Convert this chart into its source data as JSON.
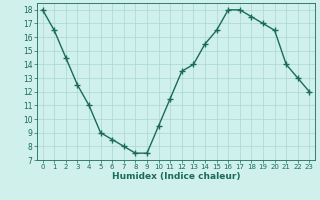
{
  "x": [
    0,
    1,
    2,
    3,
    4,
    5,
    6,
    7,
    8,
    9,
    10,
    11,
    12,
    13,
    14,
    15,
    16,
    17,
    18,
    19,
    20,
    21,
    22,
    23
  ],
  "y": [
    18,
    16.5,
    14.5,
    12.5,
    11,
    9,
    8.5,
    8,
    7.5,
    7.5,
    9.5,
    11.5,
    13.5,
    14,
    15.5,
    16.5,
    18,
    18,
    17.5,
    17,
    16.5,
    14,
    13,
    12
  ],
  "xlim": [
    -0.5,
    23.5
  ],
  "ylim": [
    7,
    18.5
  ],
  "yticks": [
    7,
    8,
    9,
    10,
    11,
    12,
    13,
    14,
    15,
    16,
    17,
    18
  ],
  "xticks": [
    0,
    1,
    2,
    3,
    4,
    5,
    6,
    7,
    8,
    9,
    10,
    11,
    12,
    13,
    14,
    15,
    16,
    17,
    18,
    19,
    20,
    21,
    22,
    23
  ],
  "xlabel": "Humidex (Indice chaleur)",
  "line_color": "#1a6b5a",
  "marker_color": "#1a6b5a",
  "bg_color": "#d0f0ec",
  "grid_color": "#a8d8d0",
  "tick_color": "#1a6b5a"
}
